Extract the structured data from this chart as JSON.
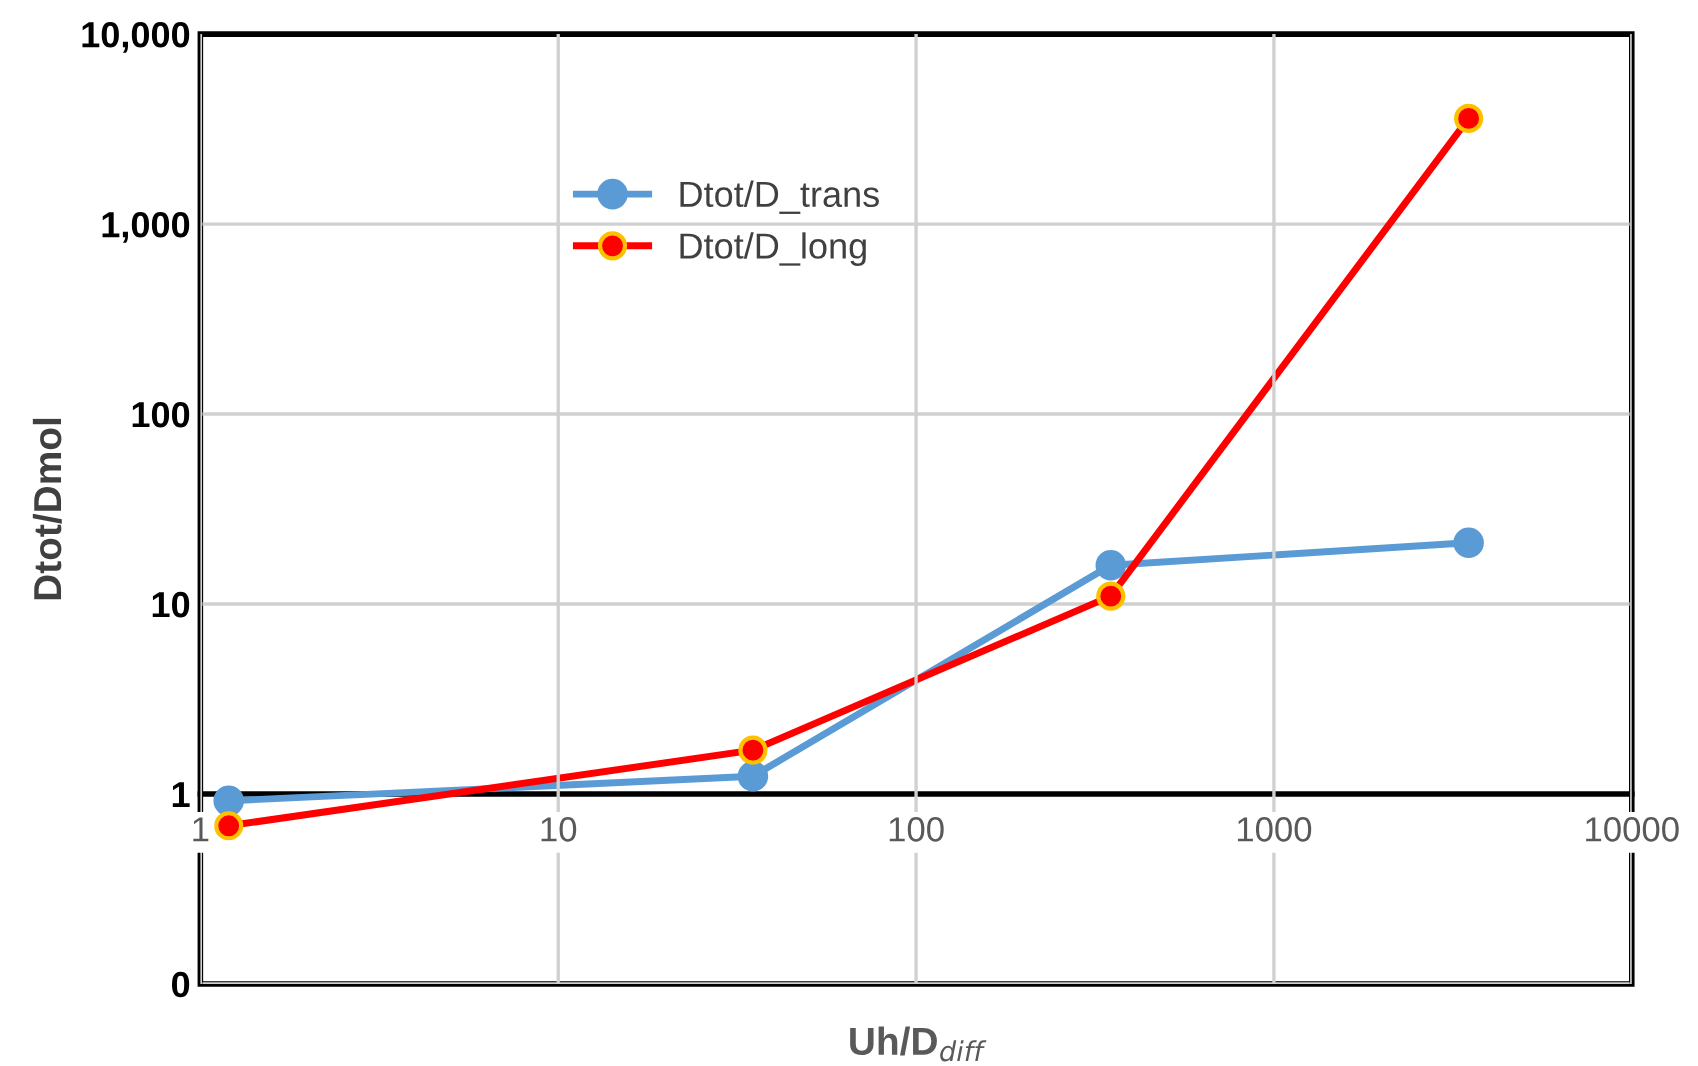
{
  "chart_data": {
    "type": "line",
    "xlabel": "Uh/D$_{diff}$",
    "ylabel": "Dtot/Dmol",
    "log": "xy",
    "grid": true,
    "legend": "top",
    "marker": "circle",
    "line_style": "solid",
    "xlim": [
      1,
      10000
    ],
    "xticks": [
      1,
      10,
      100,
      1000,
      10000
    ],
    "ylim": [
      0.1,
      10000
    ],
    "yticks": [
      {
        "value": 0.1,
        "label": "0"
      },
      1,
      10,
      100,
      {
        "value": 1000,
        "label": "1,000"
      },
      {
        "value": 10000,
        "label": "10,000"
      }
    ],
    "series": [
      {
        "name": "Dtot/D_trans",
        "color": "#5b9bd5",
        "x": [
          1.2,
          35,
          350,
          3500
        ],
        "values": [
          0.92,
          1.24,
          16,
          21
        ]
      },
      {
        "name": "Dtot/D_long",
        "color": "#ff0000",
        "x": [
          1.2,
          35,
          350,
          3500
        ],
        "values": [
          0.68,
          1.7,
          11,
          3600
        ]
      }
    ]
  }
}
